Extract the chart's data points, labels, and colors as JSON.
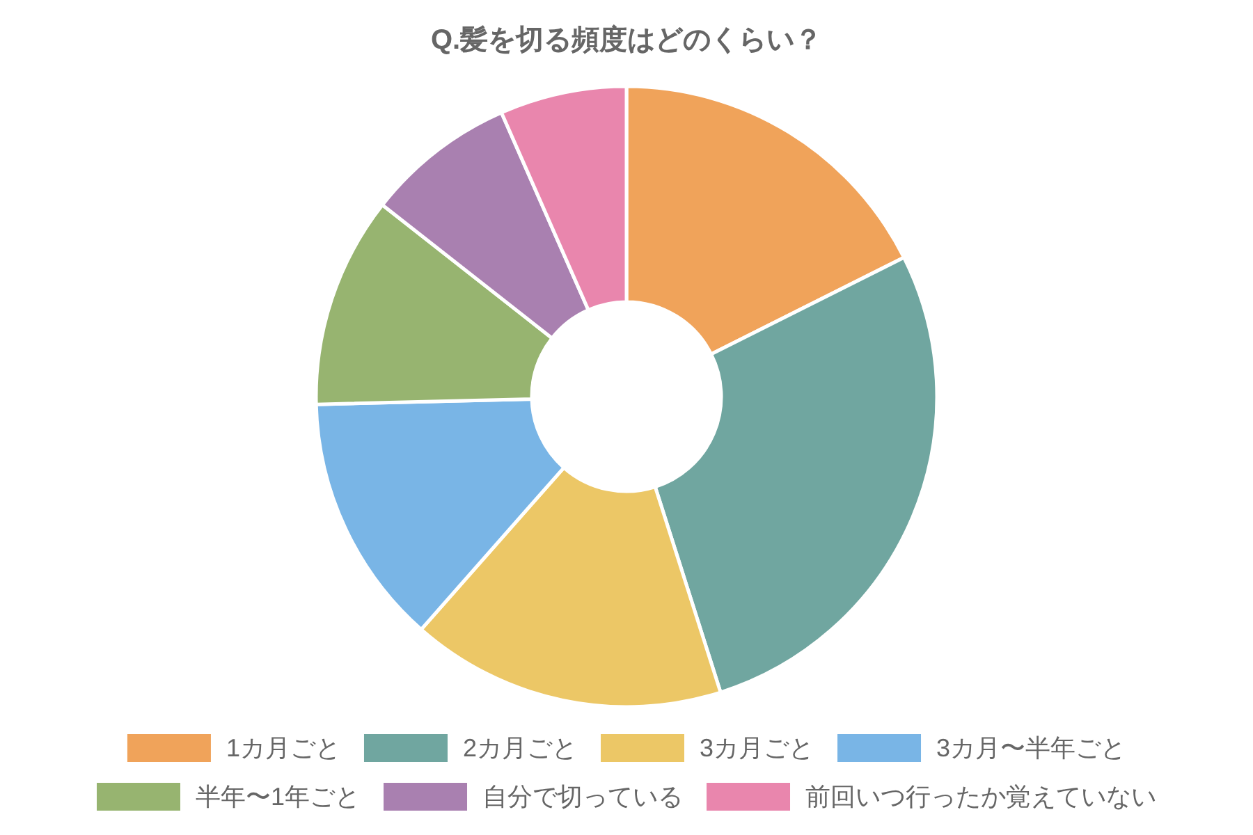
{
  "chart_data": {
    "type": "donut",
    "title": "Q.髪を切る頻度はどのくらい？",
    "categories": [
      "1カ月ごと",
      "2カ月ごと",
      "3カ月ごと",
      "3カ月〜半年ごと",
      "半年〜1年ごと",
      "自分で切っている",
      "前回いつ行ったか覚えていない"
    ],
    "values": [
      17.6,
      27.5,
      16.4,
      13.1,
      11.0,
      7.8,
      6.6
    ],
    "colors": [
      "#f0a35a",
      "#70a6a0",
      "#ecc766",
      "#79b5e6",
      "#97b470",
      "#a980b0",
      "#e986ad"
    ],
    "legend": "bottom"
  }
}
